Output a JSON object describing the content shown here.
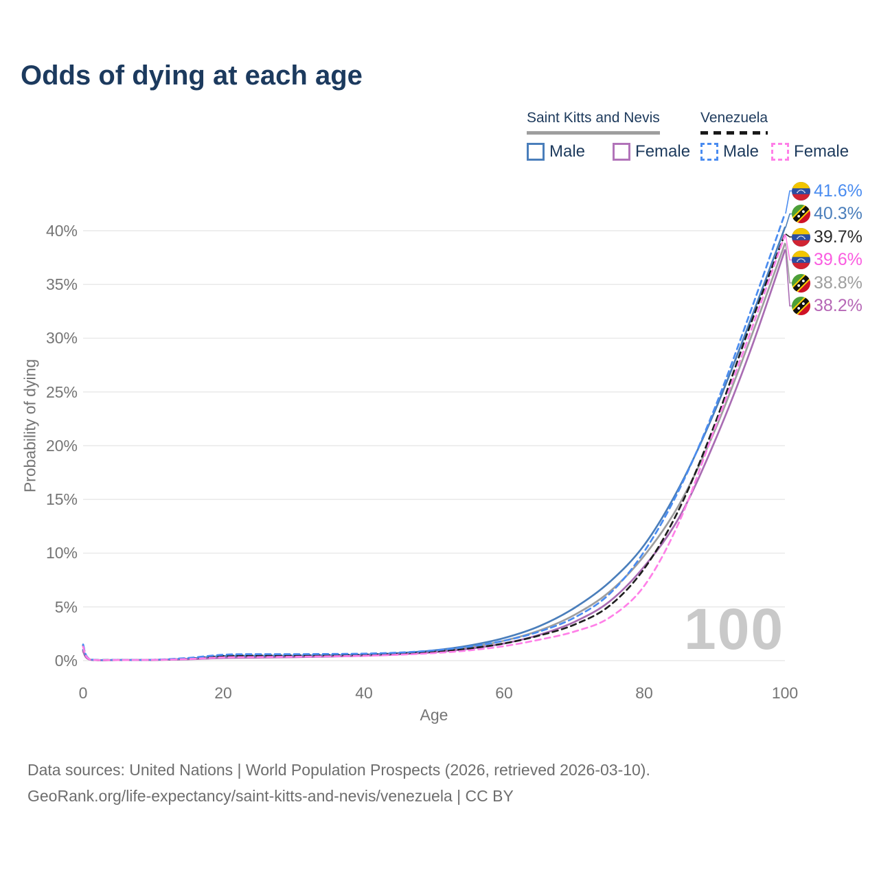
{
  "title": "Odds of dying at each age",
  "watermark": "100",
  "legend": {
    "groups": [
      {
        "label": "Saint Kitts and Nevis",
        "style": "solid",
        "color": "#9e9e9e",
        "items": [
          {
            "label": "Male",
            "color": "#4a7ebb",
            "style": "solid"
          },
          {
            "label": "Female",
            "color": "#b173b9",
            "style": "solid"
          }
        ]
      },
      {
        "label": "Venezuela",
        "style": "dashed",
        "color": "#1a1a1a",
        "items": [
          {
            "label": "Male",
            "color": "#4a8cf0",
            "style": "dashed"
          },
          {
            "label": "Female",
            "color": "#ff80e8",
            "style": "dashed"
          }
        ]
      }
    ]
  },
  "chart_data": {
    "type": "line",
    "title": "Odds of dying at each age",
    "xlabel": "Age",
    "ylabel": "Probability of dying",
    "xlim": [
      0,
      100
    ],
    "ylim": [
      0,
      43
    ],
    "grid": "horizontal",
    "x_ticks": [
      0,
      20,
      40,
      60,
      80,
      100
    ],
    "y_ticks": [
      "0%",
      "5%",
      "10%",
      "15%",
      "20%",
      "25%",
      "30%",
      "35%",
      "40%"
    ],
    "x": [
      0,
      1,
      5,
      10,
      15,
      20,
      25,
      30,
      35,
      40,
      45,
      50,
      55,
      60,
      65,
      70,
      75,
      80,
      85,
      90,
      95,
      100
    ],
    "series": [
      {
        "id": "skn_total",
        "name": "Saint Kitts and Nevis",
        "color": "#9e9e9e",
        "style": "solid",
        "values": [
          0.95,
          0.09,
          0.055,
          0.065,
          0.15,
          0.34,
          0.37,
          0.39,
          0.44,
          0.5,
          0.64,
          0.87,
          1.25,
          1.85,
          2.8,
          4.25,
          6.4,
          9.8,
          14.6,
          21.4,
          29.8,
          38.8
        ]
      },
      {
        "id": "skn_male",
        "name": "Saint Kitts and Nevis Male",
        "color": "#4a7ebb",
        "style": "solid",
        "values": [
          1.0,
          0.1,
          0.06,
          0.07,
          0.18,
          0.42,
          0.45,
          0.46,
          0.5,
          0.55,
          0.7,
          0.95,
          1.4,
          2.1,
          3.2,
          4.9,
          7.3,
          10.8,
          16.2,
          23.2,
          31.5,
          40.3
        ]
      },
      {
        "id": "skn_female",
        "name": "Saint Kitts and Nevis Female",
        "color": "#a96cb3",
        "style": "solid",
        "values": [
          0.85,
          0.08,
          0.05,
          0.06,
          0.12,
          0.25,
          0.28,
          0.32,
          0.38,
          0.45,
          0.58,
          0.78,
          1.1,
          1.6,
          2.4,
          3.6,
          5.5,
          8.8,
          13.4,
          20.4,
          28.7,
          38.2
        ]
      },
      {
        "id": "ve_total",
        "name": "Venezuela",
        "color": "#1f1f1f",
        "style": "dashed",
        "values": [
          1.4,
          0.11,
          0.065,
          0.075,
          0.2,
          0.43,
          0.47,
          0.48,
          0.51,
          0.55,
          0.65,
          0.83,
          1.13,
          1.6,
          2.33,
          3.35,
          5.1,
          8.6,
          14.2,
          22.0,
          31.1,
          39.7
        ]
      },
      {
        "id": "ve_male",
        "name": "Venezuela Male",
        "color": "#4a8cf0",
        "style": "dashed",
        "values": [
          1.5,
          0.12,
          0.07,
          0.08,
          0.25,
          0.55,
          0.6,
          0.6,
          0.62,
          0.65,
          0.75,
          0.95,
          1.3,
          1.85,
          2.7,
          4.0,
          6.2,
          10.2,
          16.0,
          23.5,
          32.3,
          41.6
        ]
      },
      {
        "id": "ve_female",
        "name": "Venezuela Female",
        "color": "#ff80e8",
        "style": "dashed",
        "values": [
          1.3,
          0.1,
          0.06,
          0.07,
          0.15,
          0.3,
          0.33,
          0.36,
          0.4,
          0.45,
          0.55,
          0.7,
          0.95,
          1.35,
          1.95,
          2.7,
          4.0,
          7.0,
          13.0,
          21.6,
          30.4,
          39.6
        ]
      }
    ]
  },
  "end_labels": [
    {
      "value": "41.6%",
      "series_id": "ve_male",
      "flag": "venezuela",
      "color": "#4a8cf0"
    },
    {
      "value": "40.3%",
      "series_id": "skn_male",
      "flag": "saint-kitts-and-nevis",
      "color": "#4a7ebb"
    },
    {
      "value": "39.7%",
      "series_id": "ve_total",
      "flag": "venezuela",
      "color": "#2b2b2b"
    },
    {
      "value": "39.6%",
      "series_id": "ve_female",
      "flag": "venezuela",
      "color": "#fa5ce0"
    },
    {
      "value": "38.8%",
      "series_id": "skn_total",
      "flag": "saint-kitts-and-nevis",
      "color": "#9e9e9e"
    },
    {
      "value": "38.2%",
      "series_id": "skn_female",
      "flag": "saint-kitts-and-nevis",
      "color": "#b667b6"
    }
  ],
  "footer": {
    "line1": "Data sources: United Nations | World Population Prospects (2026, retrieved 2026-03-10).",
    "line2": "GeoRank.org/life-expectancy/saint-kitts-and-nevis/venezuela | CC BY"
  }
}
